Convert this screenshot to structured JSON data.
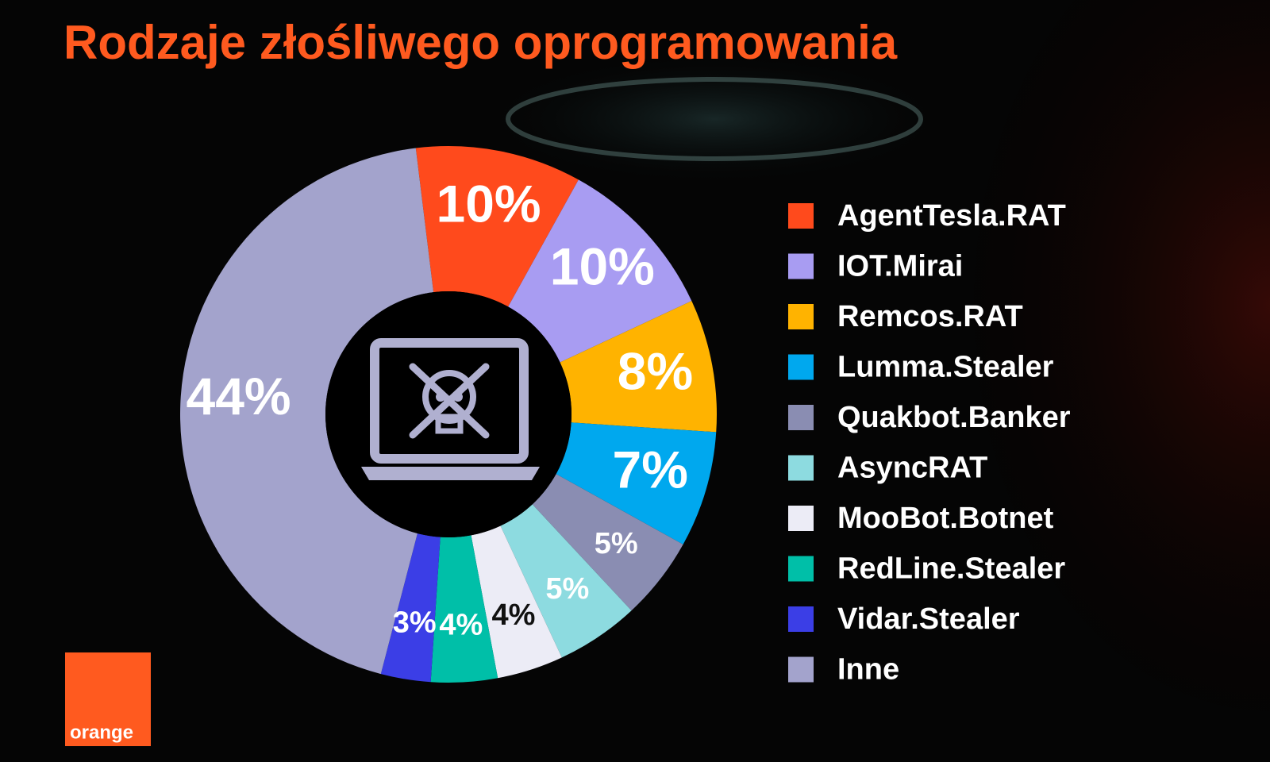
{
  "chart_data": {
    "type": "donut",
    "title": "Rodzaje złośliwego oprogramowania",
    "categories": [
      "AgentTesla.RAT",
      "IOT.Mirai",
      "Remcos.RAT",
      "Lumma.Stealer",
      "Quakbot.Banker",
      "AsyncRAT",
      "MooBot.Botnet",
      "RedLine.Stealer",
      "Vidar.Stealer",
      "Inne"
    ],
    "values": [
      10,
      10,
      8,
      7,
      5,
      5,
      4,
      4,
      3,
      44
    ],
    "value_labels": [
      "10%",
      "10%",
      "8%",
      "7%",
      "5%",
      "5%",
      "4%",
      "4%",
      "3%",
      "44%"
    ],
    "colors": [
      "#ff4a1c",
      "#a89cf2",
      "#ffb300",
      "#00a8ee",
      "#8a8db2",
      "#8ddbe0",
      "#ececf6",
      "#00bfa8",
      "#3b3ee6",
      "#a3a3cc"
    ],
    "legend": "right"
  },
  "logo": {
    "text": "orange"
  }
}
